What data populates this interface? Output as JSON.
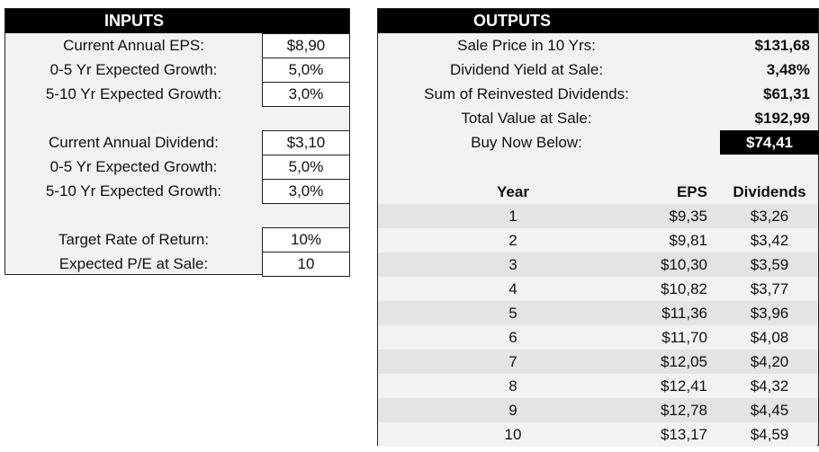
{
  "inputs": {
    "title": "INPUTS",
    "rows": [
      {
        "label": "Current Annual EPS:",
        "value": "$8,90"
      },
      {
        "label": "0-5 Yr Expected Growth:",
        "value": "5,0%"
      },
      {
        "label": "5-10 Yr Expected Growth:",
        "value": "3,0%"
      },
      {
        "label": "Current Annual Dividend:",
        "value": "$3,10"
      },
      {
        "label": "0-5 Yr Expected Growth:",
        "value": "5,0%"
      },
      {
        "label": "5-10 Yr Expected Growth:",
        "value": "3,0%"
      },
      {
        "label": "Target Rate of Return:",
        "value": "10%"
      },
      {
        "label": "Expected P/E at Sale:",
        "value": "10"
      }
    ]
  },
  "outputs": {
    "title": "OUTPUTS",
    "rows": [
      {
        "label": "Sale Price in 10 Yrs:",
        "value": "$131,68"
      },
      {
        "label": "Dividend Yield at Sale:",
        "value": "3,48%"
      },
      {
        "label": "Sum of Reinvested Dividends:",
        "value": "$61,31"
      },
      {
        "label": "Total Value at Sale:",
        "value": "$192,99"
      },
      {
        "label": "Buy Now Below:",
        "value": "$74,41"
      }
    ],
    "table": {
      "headers": {
        "year": "Year",
        "eps": "EPS",
        "div": "Dividends"
      },
      "rows": [
        {
          "year": "1",
          "eps": "$9,35",
          "div": "$3,26"
        },
        {
          "year": "2",
          "eps": "$9,81",
          "div": "$3,42"
        },
        {
          "year": "3",
          "eps": "$10,30",
          "div": "$3,59"
        },
        {
          "year": "4",
          "eps": "$10,82",
          "div": "$3,77"
        },
        {
          "year": "5",
          "eps": "$11,36",
          "div": "$3,96"
        },
        {
          "year": "6",
          "eps": "$11,70",
          "div": "$4,08"
        },
        {
          "year": "7",
          "eps": "$12,05",
          "div": "$4,20"
        },
        {
          "year": "8",
          "eps": "$12,41",
          "div": "$4,32"
        },
        {
          "year": "9",
          "eps": "$12,78",
          "div": "$4,45"
        },
        {
          "year": "10",
          "eps": "$13,17",
          "div": "$4,59"
        }
      ]
    }
  }
}
